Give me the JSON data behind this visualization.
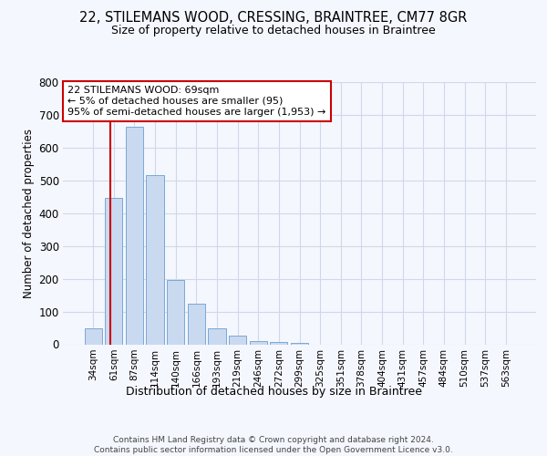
{
  "title1": "22, STILEMANS WOOD, CRESSING, BRAINTREE, CM77 8GR",
  "title2": "Size of property relative to detached houses in Braintree",
  "xlabel": "Distribution of detached houses by size in Braintree",
  "ylabel": "Number of detached properties",
  "categories": [
    "34sqm",
    "61sqm",
    "87sqm",
    "114sqm",
    "140sqm",
    "166sqm",
    "193sqm",
    "219sqm",
    "246sqm",
    "272sqm",
    "299sqm",
    "325sqm",
    "351sqm",
    "378sqm",
    "404sqm",
    "431sqm",
    "457sqm",
    "484sqm",
    "510sqm",
    "537sqm",
    "563sqm"
  ],
  "values": [
    50,
    448,
    663,
    515,
    197,
    125,
    50,
    27,
    10,
    8,
    5,
    0,
    0,
    0,
    0,
    0,
    0,
    0,
    0,
    0,
    0
  ],
  "bar_color": "#c9d9f0",
  "bar_edge_color": "#7aa8d4",
  "vline_color": "#cc0000",
  "vline_pos": 1.15,
  "annotation_text": "22 STILEMANS WOOD: 69sqm\n← 5% of detached houses are smaller (95)\n95% of semi-detached houses are larger (1,953) →",
  "ylim": [
    0,
    800
  ],
  "yticks": [
    0,
    100,
    200,
    300,
    400,
    500,
    600,
    700,
    800
  ],
  "footnote": "Contains HM Land Registry data © Crown copyright and database right 2024.\nContains public sector information licensed under the Open Government Licence v3.0.",
  "bg_color": "#f5f7ff",
  "grid_color": "#d0d8e8"
}
